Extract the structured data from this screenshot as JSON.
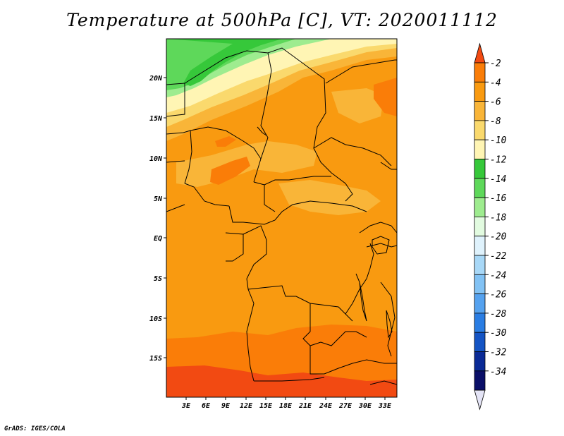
{
  "title": "Temperature at 500hPa [C], VT: 2020011112",
  "credit": "GrADS: IGES/COLA",
  "map": {
    "lat_labels": [
      "20N",
      "15N",
      "10N",
      "5N",
      "EQ",
      "5S",
      "10S",
      "15S"
    ],
    "lon_labels": [
      "3E",
      "6E",
      "9E",
      "12E",
      "15E",
      "18E",
      "21E",
      "24E",
      "27E",
      "30E",
      "33E"
    ]
  },
  "colorbar": {
    "labels": [
      "-2",
      "-4",
      "-6",
      "-8",
      "-10",
      "-12",
      "-14",
      "-16",
      "-18",
      "-20",
      "-22",
      "-24",
      "-26",
      "-28",
      "-30",
      "-32",
      "-34"
    ],
    "colors": [
      "#f24a12",
      "#fa7d08",
      "#f99a10",
      "#f9b538",
      "#fad96d",
      "#fff5b4",
      "#36c83a",
      "#5ed85a",
      "#9eec8f",
      "#e2fbe0",
      "#dff2fc",
      "#a8d8f7",
      "#82c2f4",
      "#55a2ef",
      "#2a7de3",
      "#1454c4",
      "#0a2a96",
      "#0a0f68",
      "#e4e4f6"
    ]
  }
}
